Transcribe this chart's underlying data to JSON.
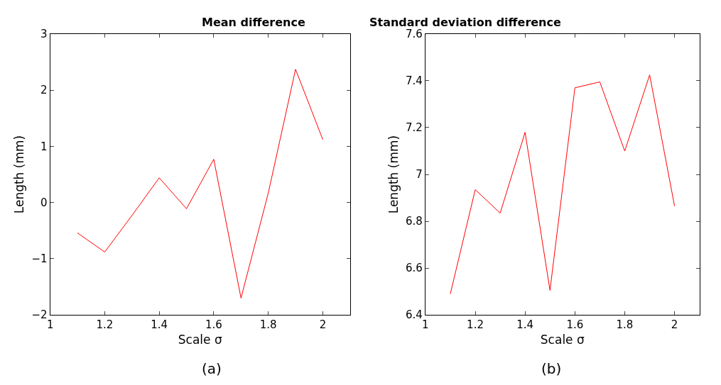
{
  "chart_data": [
    {
      "type": "line",
      "title": "Mean difference",
      "xlabel": "Scale σ",
      "ylabel": "Length (mm)",
      "annotations": [
        "(a)"
      ],
      "x": [
        1.1,
        1.2,
        1.3,
        1.4,
        1.5,
        1.6,
        1.7,
        1.8,
        1.9,
        2.0
      ],
      "series": [
        {
          "color": "#ff0000",
          "values": [
            -0.54,
            -0.88,
            -0.23,
            0.44,
            -0.11,
            0.77,
            -1.7,
            0.17,
            2.37,
            1.12
          ]
        }
      ],
      "xlim": [
        1,
        2.1
      ],
      "xticks": [
        1,
        1.2,
        1.4,
        1.6,
        1.8,
        2
      ],
      "ylim": [
        -2,
        3
      ],
      "yticks": [
        {
          "value": -2,
          "label": "−2"
        },
        {
          "value": -1,
          "label": "−1"
        },
        0,
        1,
        2,
        3
      ],
      "marker": "none",
      "line_style": "solid"
    },
    {
      "type": "line",
      "title": "Standard deviation difference",
      "xlabel": "Scale σ",
      "ylabel": "Length (mm)",
      "annotations": [
        "(b)"
      ],
      "x": [
        1.1,
        1.2,
        1.3,
        1.4,
        1.5,
        1.6,
        1.7,
        1.8,
        1.9,
        2.0
      ],
      "series": [
        {
          "color": "#ff0000",
          "values": [
            6.49,
            6.935,
            6.835,
            7.18,
            6.505,
            7.37,
            7.395,
            7.1,
            7.425,
            6.865
          ]
        }
      ],
      "xlim": [
        1,
        2.1
      ],
      "xticks": [
        1,
        1.2,
        1.4,
        1.6,
        1.8,
        2
      ],
      "ylim": [
        6.4,
        7.6
      ],
      "yticks": [
        6.4,
        6.6,
        6.8,
        7,
        7.2,
        7.4,
        7.6
      ],
      "marker": "none",
      "line_style": "solid"
    }
  ]
}
